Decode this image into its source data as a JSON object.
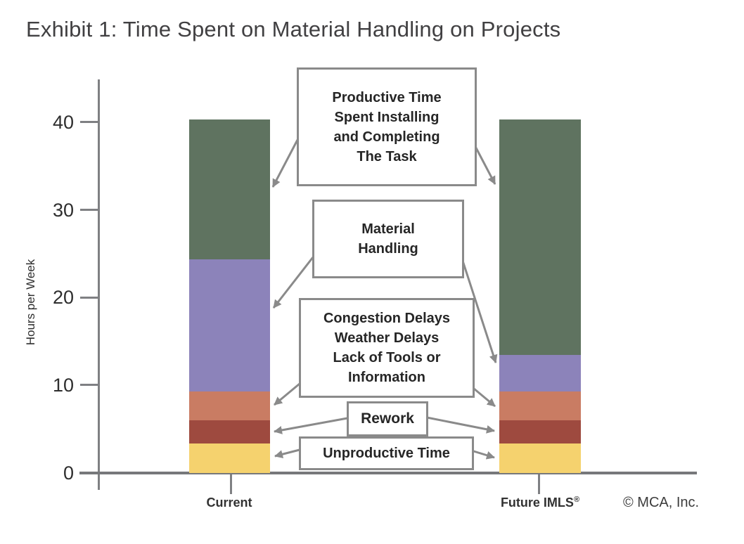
{
  "title": "Exhibit 1: Time Spent on Material Handling on Projects",
  "y_axis": {
    "label": "Hours per Week"
  },
  "x_axis": {
    "categories": [
      {
        "label": "Current",
        "reg": ""
      },
      {
        "label": "Future IMLS",
        "reg": "®"
      }
    ]
  },
  "copyright": "© MCA, Inc.",
  "annotations": {
    "productive": "Productive Time\nSpent Installing\nand Completing\nThe Task",
    "material": "Material\nHandling",
    "delays": "Congestion Delays\nWeather Delays\nLack of Tools or\nInformation",
    "rework": "Rework",
    "unproductive": "Unproductive Time"
  },
  "chart_data": {
    "type": "bar",
    "subtype": "stacked-vertical",
    "title": "Exhibit 1: Time Spent on Material Handling on Projects",
    "ylabel": "Hours per Week",
    "xlabel": "",
    "categories": [
      "Current",
      "Future IMLS®"
    ],
    "yticks": [
      0,
      10,
      20,
      30,
      40
    ],
    "ylim": [
      0,
      44.8
    ],
    "grid": false,
    "legend_position": "callout-boxes-with-arrows",
    "bar_totals": [
      40.3,
      40.3
    ],
    "series": [
      {
        "key": "unproductive",
        "name": "Unproductive Time",
        "color": "#F5D26E",
        "values": [
          3.4,
          3.4
        ]
      },
      {
        "key": "rework",
        "name": "Rework",
        "color": "#9E4A3F",
        "values": [
          2.6,
          2.6
        ]
      },
      {
        "key": "delays",
        "name": "Congestion Delays, Weather Delays, Lack of Tools or Information",
        "color": "#C97C63",
        "values": [
          3.3,
          3.3
        ]
      },
      {
        "key": "material-handling",
        "name": "Material Handling",
        "color": "#8C83BA",
        "values": [
          15.1,
          4.2
        ]
      },
      {
        "key": "productive",
        "name": "Productive Time Spent Installing and Completing The Task",
        "color": "#5F7360",
        "values": [
          15.9,
          26.8
        ]
      }
    ],
    "accent_colors": {
      "lines_and_borders": "#8A8A8A",
      "axis": "#77787B",
      "text": "#262626"
    }
  }
}
